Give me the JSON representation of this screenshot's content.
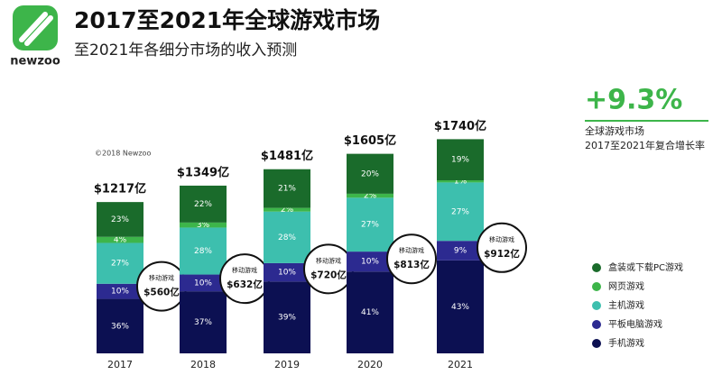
{
  "logo": "newzoo",
  "chart_data": {
    "type": "bar",
    "title": "2017至2021年全球游戏市场",
    "subtitle": "至2021年各细分市场的收入预测",
    "copyright": "©2018 Newzoo",
    "categories": [
      "2017",
      "2018",
      "2019",
      "2020",
      "2021"
    ],
    "totals": [
      1217,
      1349,
      1481,
      1605,
      1740
    ],
    "totals_labels": [
      "$1217亿",
      "$1349亿",
      "$1481亿",
      "$1605亿",
      "$1740亿"
    ],
    "series": [
      {
        "name": "手机游戏",
        "color": "#0c1052",
        "values": [
          36,
          37,
          39,
          41,
          43
        ],
        "value_labels": [
          "36%",
          "37%",
          "39%",
          "41%",
          "43%"
        ]
      },
      {
        "name": "平板电脑游戏",
        "color": "#2c2a90",
        "values": [
          10,
          10,
          10,
          10,
          9
        ],
        "value_labels": [
          "10%",
          "10%",
          "10%",
          "10%",
          "9%"
        ]
      },
      {
        "name": "主机游戏",
        "color": "#3dbfae",
        "values": [
          27,
          28,
          28,
          27,
          27
        ],
        "value_labels": [
          "27%",
          "28%",
          "28%",
          "27%",
          "27%"
        ]
      },
      {
        "name": "网页游戏",
        "color": "#3db54a",
        "values": [
          4,
          3,
          2,
          2,
          1
        ],
        "value_labels": [
          "4%",
          "3%",
          "2%",
          "2%",
          "1%"
        ]
      },
      {
        "name": "盒装或下载PC游戏",
        "color": "#1a6b2b",
        "values": [
          23,
          22,
          21,
          20,
          19
        ],
        "value_labels": [
          "23%",
          "22%",
          "21%",
          "20%",
          "19%"
        ]
      }
    ],
    "mobile_callout": {
      "label": "移动游戏",
      "values": [
        560,
        632,
        720,
        813,
        912
      ],
      "value_labels": [
        "$560亿",
        "$632亿",
        "$720亿",
        "$813亿",
        "$912亿"
      ]
    },
    "cagr": {
      "value": 9.3,
      "label": "+9.3%",
      "line1": "全球游戏市场",
      "line2": "2017至2021年复合增长率"
    }
  }
}
